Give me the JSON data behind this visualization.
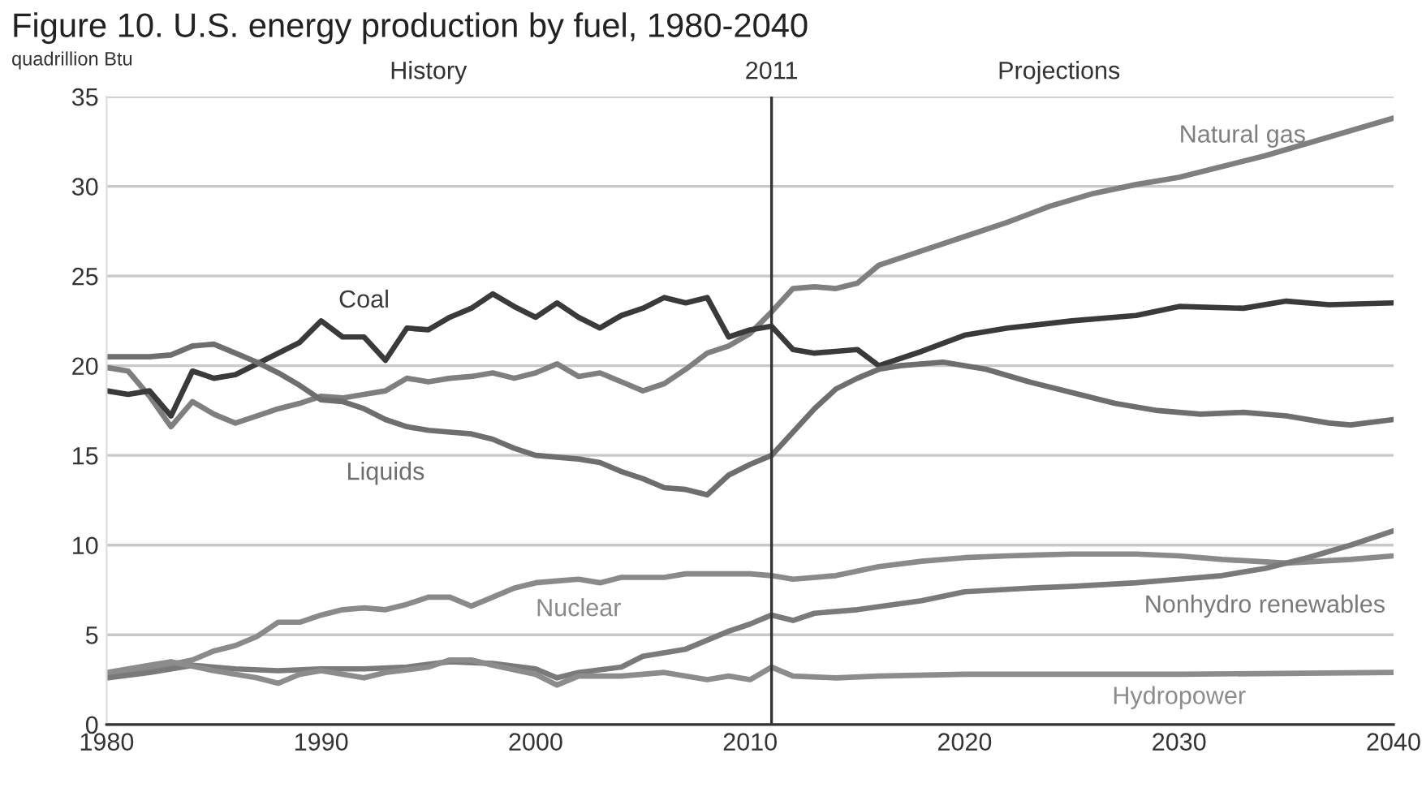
{
  "chart_data": {
    "type": "line",
    "title": "Figure 10. U.S. energy production by fuel, 1980-2040",
    "ylabel": "quadrillion Btu",
    "annotations": [
      "History",
      "Projections"
    ],
    "ref_lines": [
      {
        "axis": "x",
        "value": 2011,
        "label": "2011",
        "color": "#333333",
        "line_style": "solid"
      }
    ],
    "xlim": [
      1980,
      2040
    ],
    "xticks": [
      1980,
      1990,
      2000,
      2010,
      2020,
      2030,
      2040
    ],
    "ylim": [
      0,
      35
    ],
    "yticks": [
      0,
      5,
      10,
      15,
      20,
      25,
      30,
      35
    ],
    "grid": "y",
    "marker": "none",
    "line_style": "solid",
    "series": [
      {
        "name": "Natural gas",
        "color": "#7f7f7f",
        "x": [
          1980,
          1981,
          1982,
          1983,
          1984,
          1985,
          1986,
          1987,
          1988,
          1989,
          1990,
          1991,
          1992,
          1993,
          1994,
          1995,
          1996,
          1997,
          1998,
          1999,
          2000,
          2001,
          2002,
          2003,
          2004,
          2005,
          2006,
          2007,
          2008,
          2009,
          2010,
          2011,
          2012,
          2013,
          2014,
          2015,
          2016,
          2018,
          2020,
          2022,
          2024,
          2026,
          2028,
          2030,
          2032,
          2034,
          2036,
          2038,
          2040
        ],
        "values": [
          19.9,
          19.7,
          18.3,
          16.6,
          18.0,
          17.3,
          16.8,
          17.2,
          17.6,
          17.9,
          18.3,
          18.2,
          18.4,
          18.6,
          19.3,
          19.1,
          19.3,
          19.4,
          19.6,
          19.3,
          19.6,
          20.1,
          19.4,
          19.6,
          19.1,
          18.6,
          19.0,
          19.8,
          20.7,
          21.1,
          21.8,
          23.0,
          24.3,
          24.4,
          24.3,
          24.6,
          25.6,
          26.4,
          27.2,
          28.0,
          28.9,
          29.6,
          30.1,
          30.5,
          31.1,
          31.7,
          32.4,
          33.1,
          33.8
        ]
      },
      {
        "name": "Coal",
        "color": "#3a3a3a",
        "x": [
          1980,
          1981,
          1982,
          1983,
          1984,
          1985,
          1986,
          1987,
          1988,
          1989,
          1990,
          1991,
          1992,
          1993,
          1994,
          1995,
          1996,
          1997,
          1998,
          1999,
          2000,
          2001,
          2002,
          2003,
          2004,
          2005,
          2006,
          2007,
          2008,
          2009,
          2010,
          2011,
          2012,
          2013,
          2014,
          2015,
          2016,
          2018,
          2020,
          2022,
          2025,
          2028,
          2030,
          2033,
          2035,
          2037,
          2040
        ],
        "values": [
          18.6,
          18.4,
          18.6,
          17.2,
          19.7,
          19.3,
          19.5,
          20.1,
          20.7,
          21.3,
          22.5,
          21.6,
          21.6,
          20.3,
          22.1,
          22.0,
          22.7,
          23.2,
          24.0,
          23.3,
          22.7,
          23.5,
          22.7,
          22.1,
          22.8,
          23.2,
          23.8,
          23.5,
          23.8,
          21.6,
          22.0,
          22.2,
          20.9,
          20.7,
          20.8,
          20.9,
          20.0,
          20.8,
          21.7,
          22.1,
          22.5,
          22.8,
          23.3,
          23.2,
          23.6,
          23.4,
          23.5
        ]
      },
      {
        "name": "Liquids",
        "color": "#6e6e6e",
        "x": [
          1980,
          1981,
          1982,
          1983,
          1984,
          1985,
          1986,
          1987,
          1988,
          1989,
          1990,
          1991,
          1992,
          1993,
          1994,
          1995,
          1996,
          1997,
          1998,
          1999,
          2000,
          2002,
          2003,
          2004,
          2005,
          2006,
          2007,
          2008,
          2009,
          2010,
          2011,
          2012,
          2013,
          2014,
          2015,
          2016,
          2017,
          2019,
          2021,
          2023,
          2025,
          2027,
          2029,
          2031,
          2033,
          2035,
          2037,
          2038,
          2040
        ],
        "values": [
          20.5,
          20.5,
          20.5,
          20.6,
          21.1,
          21.2,
          20.7,
          20.2,
          19.6,
          18.9,
          18.1,
          18.0,
          17.6,
          17.0,
          16.6,
          16.4,
          16.3,
          16.2,
          15.9,
          15.4,
          15.0,
          14.8,
          14.6,
          14.1,
          13.7,
          13.2,
          13.1,
          12.8,
          13.9,
          14.5,
          15.0,
          16.3,
          17.6,
          18.7,
          19.3,
          19.8,
          20.0,
          20.2,
          19.8,
          19.1,
          18.5,
          17.9,
          17.5,
          17.3,
          17.4,
          17.2,
          16.8,
          16.7,
          17.0
        ]
      },
      {
        "name": "Nuclear",
        "color": "#8a8a8a",
        "x": [
          1980,
          1982,
          1984,
          1985,
          1986,
          1987,
          1988,
          1989,
          1990,
          1991,
          1992,
          1993,
          1994,
          1995,
          1996,
          1997,
          1998,
          1999,
          2000,
          2001,
          2002,
          2003,
          2004,
          2005,
          2006,
          2007,
          2008,
          2009,
          2010,
          2011,
          2012,
          2014,
          2016,
          2018,
          2020,
          2022,
          2025,
          2028,
          2030,
          2032,
          2035,
          2038,
          2040
        ],
        "values": [
          2.7,
          3.1,
          3.6,
          4.1,
          4.4,
          4.9,
          5.7,
          5.7,
          6.1,
          6.4,
          6.5,
          6.4,
          6.7,
          7.1,
          7.1,
          6.6,
          7.1,
          7.6,
          7.9,
          8.0,
          8.1,
          7.9,
          8.2,
          8.2,
          8.2,
          8.4,
          8.4,
          8.4,
          8.4,
          8.3,
          8.1,
          8.3,
          8.8,
          9.1,
          9.3,
          9.4,
          9.5,
          9.5,
          9.4,
          9.2,
          9.0,
          9.2,
          9.4
        ]
      },
      {
        "name": "Nonhydro renewables",
        "color": "#7a7a7a",
        "x": [
          1980,
          1982,
          1984,
          1986,
          1988,
          1990,
          1992,
          1994,
          1996,
          1998,
          2000,
          2001,
          2002,
          2004,
          2005,
          2007,
          2008,
          2009,
          2010,
          2011,
          2012,
          2013,
          2015,
          2018,
          2020,
          2023,
          2025,
          2028,
          2030,
          2032,
          2034,
          2036,
          2038,
          2040
        ],
        "values": [
          2.6,
          2.9,
          3.3,
          3.1,
          3.0,
          3.1,
          3.1,
          3.2,
          3.5,
          3.4,
          3.1,
          2.6,
          2.9,
          3.2,
          3.8,
          4.2,
          4.7,
          5.2,
          5.6,
          6.1,
          5.8,
          6.2,
          6.4,
          6.9,
          7.4,
          7.6,
          7.7,
          7.9,
          8.1,
          8.3,
          8.7,
          9.3,
          10.0,
          10.8
        ]
      },
      {
        "name": "Hydropower",
        "color": "#8c8c8c",
        "x": [
          1980,
          1982,
          1983,
          1985,
          1987,
          1988,
          1989,
          1990,
          1992,
          1993,
          1995,
          1996,
          1997,
          1998,
          2000,
          2001,
          2002,
          2004,
          2006,
          2008,
          2009,
          2010,
          2011,
          2012,
          2014,
          2016,
          2020,
          2030,
          2040
        ],
        "values": [
          2.9,
          3.3,
          3.5,
          3.0,
          2.6,
          2.3,
          2.8,
          3.0,
          2.6,
          2.9,
          3.2,
          3.6,
          3.6,
          3.3,
          2.8,
          2.2,
          2.7,
          2.7,
          2.9,
          2.5,
          2.7,
          2.5,
          3.2,
          2.7,
          2.6,
          2.7,
          2.8,
          2.8,
          2.9
        ]
      }
    ]
  }
}
